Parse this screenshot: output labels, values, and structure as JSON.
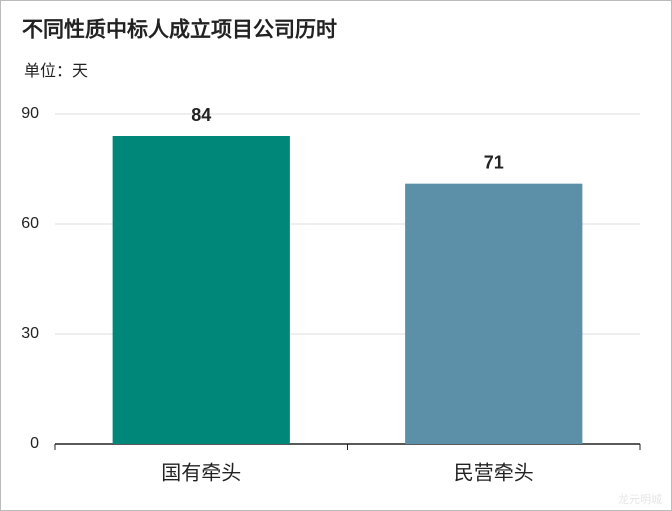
{
  "chart_data": {
    "type": "bar",
    "title": "不同性质中标人成立项目公司历时",
    "subtitle": "单位：天",
    "categories": [
      "国有牵头",
      "民营牵头"
    ],
    "values": [
      84,
      71
    ],
    "colors": [
      "#00877a",
      "#5b90a8"
    ],
    "ylim": [
      0,
      90
    ],
    "yticks": [
      0,
      30,
      60,
      90
    ],
    "grid": true,
    "watermark": "龙元明城"
  }
}
